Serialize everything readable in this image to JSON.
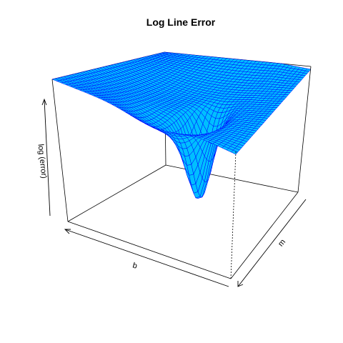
{
  "chart_data": {
    "type": "surface3d",
    "title": "Log Line Error",
    "xlabel": "b",
    "ylabel": "m",
    "zlabel": "log (error)",
    "surface_color": "#00bfff",
    "mesh_color": "#0000ff",
    "axis_color": "#000000"
  }
}
